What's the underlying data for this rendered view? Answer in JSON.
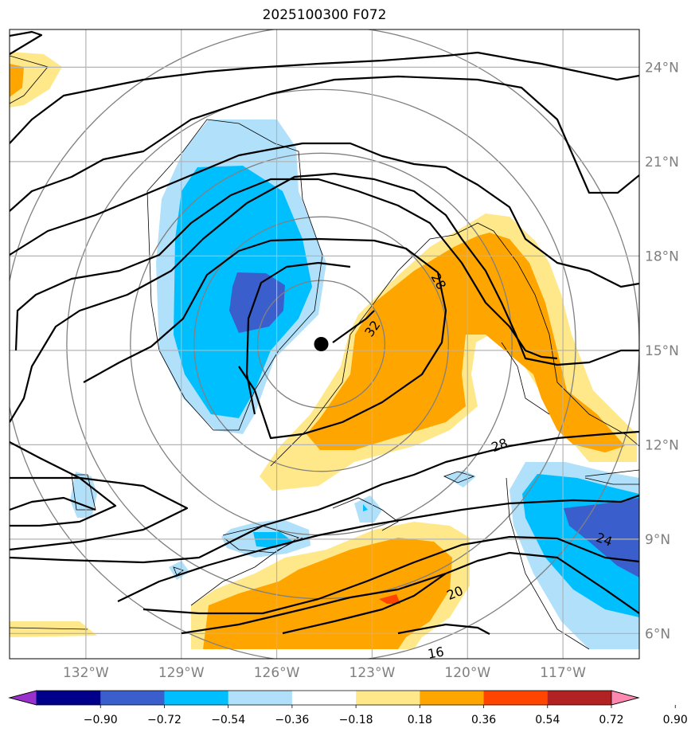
{
  "chart_data": {
    "type": "contour-map",
    "title": "2025100300 F072",
    "xlim": [
      -134.4,
      -114.6
    ],
    "ylim": [
      5.2,
      25.2
    ],
    "x_ticks": [
      {
        "value": -132,
        "label": "132°W"
      },
      {
        "value": -129,
        "label": "129°W"
      },
      {
        "value": -126,
        "label": "126°W"
      },
      {
        "value": -123,
        "label": "123°W"
      },
      {
        "value": -120,
        "label": "120°W"
      },
      {
        "value": -117,
        "label": "117°W"
      }
    ],
    "y_ticks": [
      {
        "value": 6,
        "label": "6°N"
      },
      {
        "value": 9,
        "label": "9°N"
      },
      {
        "value": 12,
        "label": "12°N"
      },
      {
        "value": 15,
        "label": "15°N"
      },
      {
        "value": 18,
        "label": "18°N"
      },
      {
        "value": 21,
        "label": "21°N"
      },
      {
        "value": 24,
        "label": "24°N"
      }
    ],
    "grid": true,
    "center_marker": {
      "lon": -124.6,
      "lat": 15.2
    },
    "range_rings_deg": [
      2,
      4,
      6,
      8,
      10
    ],
    "contour_labels": [
      {
        "text": "32",
        "lon": -123.0,
        "lat": 15.7,
        "angle": -55
      },
      {
        "text": "28",
        "lon": -120.9,
        "lat": 17.2,
        "angle": 60
      },
      {
        "text": "28",
        "lon": -119.0,
        "lat": 12.0,
        "angle": -20
      },
      {
        "text": "24",
        "lon": -115.7,
        "lat": 9.0,
        "angle": 20
      },
      {
        "text": "20",
        "lon": -120.4,
        "lat": 7.3,
        "angle": -22
      },
      {
        "text": "16",
        "lon": -121.0,
        "lat": 5.4,
        "angle": -10
      }
    ],
    "colorbar": {
      "ticks": [
        "−0.90",
        "−0.72",
        "−0.54",
        "−0.36",
        "−0.18",
        "0.18",
        "0.36",
        "0.54",
        "0.72",
        "0.90"
      ],
      "colors": [
        "#9932cc",
        "#00008b",
        "#3a5fcd",
        "#00bfff",
        "#b0e0fa",
        "#ffffff",
        "#ffe88a",
        "#ffa500",
        "#ff4500",
        "#b22222",
        "#ff88b0"
      ]
    },
    "fill_colors": {
      "light_blue": "#b0e0fa",
      "blue": "#00bfff",
      "dark_blue": "#3a5fcd",
      "yellow": "#ffe88a",
      "orange": "#ffa500",
      "red": "#ff4500"
    },
    "contour_color": "#000000",
    "ring_color": "#808080",
    "grid_color": "#b4b4b4"
  }
}
